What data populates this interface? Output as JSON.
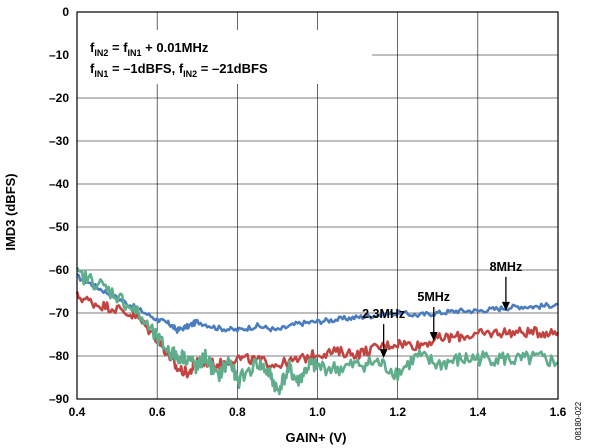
{
  "chart_data": {
    "type": "line",
    "title": "",
    "xlabel": "GAIN+ (V)",
    "ylabel": "IMD3 (dBFS)",
    "xlim": [
      0.4,
      1.6
    ],
    "ylim": [
      -90,
      0
    ],
    "xticks": [
      "0.4",
      "0.6",
      "0.8",
      "1.0",
      "1.2",
      "1.4",
      "1.6"
    ],
    "yticks": [
      "0",
      "–10",
      "–20",
      "–30",
      "–40",
      "–50",
      "–60",
      "–70",
      "–80",
      "–90"
    ],
    "grid": true,
    "conditions": {
      "line1": {
        "f1": "f",
        "s1": "IN2",
        "mid1": " = ",
        "f2": "f",
        "s2": "IN1",
        "tail": " + 0.01MHz"
      },
      "line2": {
        "f1": "f",
        "s1": "IN1",
        "mid1": " = –1dBFS, ",
        "f2": "f",
        "s2": "IN2",
        "tail": " = –21dBFS"
      }
    },
    "series": [
      {
        "name": "8MHz",
        "color": "#4a7cc0",
        "x": [
          0.4,
          0.45,
          0.5,
          0.55,
          0.6,
          0.63,
          0.65,
          0.68,
          0.7,
          0.75,
          0.8,
          0.85,
          0.9,
          0.95,
          1.0,
          1.05,
          1.1,
          1.15,
          1.2,
          1.25,
          1.3,
          1.35,
          1.4,
          1.45,
          1.5,
          1.55,
          1.6
        ],
        "y": [
          -61.5,
          -64,
          -66.5,
          -69,
          -71.5,
          -72.5,
          -74,
          -73,
          -72,
          -73.5,
          -74,
          -73,
          -74,
          -72.5,
          -72,
          -71.5,
          -71,
          -70.5,
          -70,
          -70.5,
          -70,
          -69.5,
          -69.5,
          -69,
          -68.5,
          -68.5,
          -68
        ]
      },
      {
        "name": "5MHz",
        "color": "#c24441",
        "x": [
          0.4,
          0.45,
          0.5,
          0.55,
          0.6,
          0.63,
          0.65,
          0.68,
          0.7,
          0.75,
          0.8,
          0.85,
          0.9,
          0.95,
          1.0,
          1.05,
          1.1,
          1.15,
          1.2,
          1.25,
          1.3,
          1.35,
          1.4,
          1.45,
          1.5,
          1.55,
          1.6
        ],
        "y": [
          -66,
          -68,
          -69,
          -71,
          -76,
          -80,
          -83,
          -84,
          -81,
          -82,
          -80.5,
          -81,
          -82,
          -81,
          -79.5,
          -79,
          -79.5,
          -78,
          -77,
          -77.5,
          -76,
          -75.5,
          -75,
          -74.5,
          -74.5,
          -74.5,
          -74.5
        ]
      },
      {
        "name": "2.3MHz",
        "color": "#5fad8b",
        "x": [
          0.4,
          0.45,
          0.5,
          0.55,
          0.6,
          0.63,
          0.65,
          0.68,
          0.7,
          0.72,
          0.75,
          0.78,
          0.8,
          0.85,
          0.88,
          0.9,
          0.93,
          0.95,
          0.98,
          1.0,
          1.05,
          1.1,
          1.15,
          1.2,
          1.25,
          1.3,
          1.35,
          1.4,
          1.45,
          1.5,
          1.55,
          1.6
        ],
        "y": [
          -61,
          -63,
          -66,
          -70,
          -76,
          -79,
          -80,
          -80.5,
          -83,
          -80,
          -85,
          -81,
          -86,
          -81.5,
          -84,
          -88,
          -83,
          -86,
          -82,
          -82.5,
          -83,
          -82,
          -81.5,
          -84,
          -80,
          -82,
          -81,
          -80.5,
          -80.5,
          -81,
          -80.5,
          -81.5
        ]
      }
    ],
    "annotations": [
      {
        "text": "8MHz",
        "x": 1.47,
        "y": -69.5
      },
      {
        "text": "5MHz",
        "x": 1.29,
        "y": -76.5
      },
      {
        "text": "2.3MHz",
        "x": 1.165,
        "y": -80.5
      }
    ],
    "figure_id": "08180-022"
  }
}
